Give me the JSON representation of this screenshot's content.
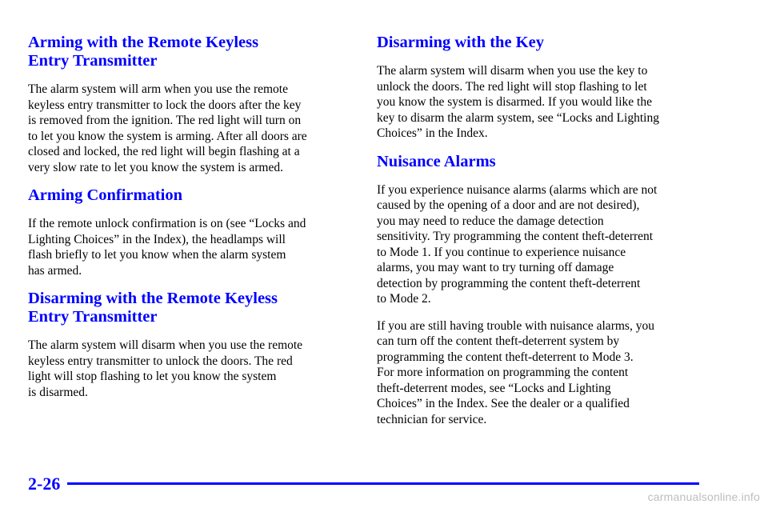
{
  "left": {
    "sec1_title": [
      "Arming with the Remote Keyless",
      "Entry Transmitter"
    ],
    "sec1_body": [
      "The alarm system will arm when you use the remote",
      "keyless entry transmitter to lock the doors after the key",
      "is removed from the ignition. The red light will turn on",
      "to let you know the system is arming. After all doors are",
      "closed and locked, the red light will begin flashing at a",
      "very slow rate to let you know the system is armed."
    ],
    "sec2_title": "Arming Confirmation",
    "sec2_body": [
      "If the remote unlock confirmation is on (see “Locks and",
      "Lighting Choices” in the Index), the headlamps will",
      "flash briefly to let you know when the alarm system",
      "has armed."
    ],
    "sec3_title": [
      "Disarming with the Remote Keyless",
      "Entry Transmitter"
    ],
    "sec3_body": [
      "The alarm system will disarm when you use the remote",
      "keyless entry transmitter to unlock the doors. The red",
      "light will stop flashing to let you know the system",
      "is disarmed."
    ]
  },
  "right": {
    "sec1_title": "Disarming with the Key",
    "sec1_body": [
      "The alarm system will disarm when you use the key to",
      "unlock the doors. The red light will stop flashing to let",
      "you know the system is disarmed. If you would like the",
      "key to disarm the alarm system, see “Locks and Lighting",
      "Choices” in the Index."
    ],
    "sec2_title": "Nuisance Alarms",
    "sec2_body_p1": [
      "If you experience nuisance alarms (alarms which are not",
      "caused by the opening of a door and are not desired),",
      "you may need to reduce the damage detection",
      "sensitivity. Try programming the content theft‐deterrent",
      "to Mode 1. If you continue to experience nuisance",
      "alarms, you may want to try turning off damage",
      "detection by programming the content theft‐deterrent",
      "to Mode 2."
    ],
    "sec2_body_p2": [
      "If you are still having trouble with nuisance alarms, you",
      "can turn off the content theft‐deterrent system by",
      "programming the content theft‐deterrent to Mode 3.",
      "For more information on programming the content",
      "theft‐deterrent modes, see “Locks and Lighting",
      "Choices” in the Index. See the dealer or a qualified",
      "technician for service."
    ]
  },
  "footer": {
    "page_number": "2-26",
    "watermark": "carmanualsonline.info"
  },
  "colors": {
    "heading": "#0000ff",
    "body_text": "#000000",
    "watermark": "#bdbdbd"
  }
}
